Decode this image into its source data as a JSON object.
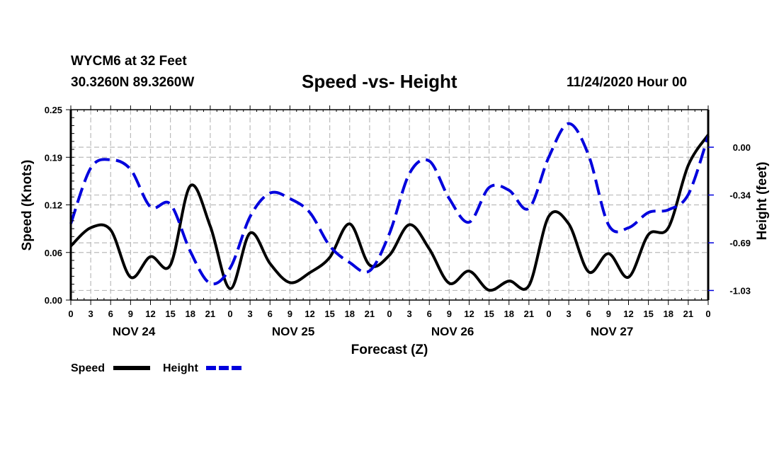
{
  "header": {
    "station": "WYCM6 at 32 Feet",
    "coords": "30.3260N 89.3260W",
    "title": "Speed -vs- Height",
    "datetime": "11/24/2020 Hour 00"
  },
  "chart_data": {
    "type": "line",
    "title": "Speed -vs- Height",
    "xlabel": "Forecast (Z)",
    "ylabel": "Speed (Knots)",
    "y2label": "Height (feet)",
    "x_hours": [
      0,
      3,
      6,
      9,
      12,
      15,
      18,
      21,
      24,
      27,
      30,
      33,
      36,
      39,
      42,
      45,
      48,
      51,
      54,
      57,
      60,
      63,
      66,
      69,
      72,
      75,
      78,
      81,
      84,
      87,
      90,
      93,
      96
    ],
    "x_tick_labels": [
      "0",
      "3",
      "6",
      "9",
      "12",
      "15",
      "18",
      "21",
      "0",
      "3",
      "6",
      "9",
      "12",
      "15",
      "18",
      "21",
      "0",
      "3",
      "6",
      "9",
      "12",
      "15",
      "18",
      "21",
      "0",
      "3",
      "6",
      "9",
      "12",
      "15",
      "18",
      "21",
      "0"
    ],
    "day_labels": [
      "NOV 24",
      "NOV 25",
      "NOV 26",
      "NOV 27"
    ],
    "xlim": [
      0,
      96
    ],
    "ylim": [
      0,
      0.25
    ],
    "y_ticks": [
      0.0,
      0.0625,
      0.125,
      0.1875,
      0.25
    ],
    "y_tick_labels": [
      "0.00",
      "0.06",
      "0.12",
      "0.19",
      "0.25"
    ],
    "y2lim": [
      -1.1,
      0.27
    ],
    "y2_ticks": [
      0.0,
      -0.344,
      -0.688,
      -1.031
    ],
    "y2_tick_labels": [
      "0.00",
      "-0.34",
      "-0.69",
      "-1.03"
    ],
    "grid": true,
    "legend_position": "bottom-left",
    "series": [
      {
        "name": "Speed",
        "axis": "left",
        "color": "#000000",
        "style": "solid",
        "values": [
          0.071,
          0.095,
          0.092,
          0.03,
          0.057,
          0.046,
          0.15,
          0.097,
          0.015,
          0.088,
          0.048,
          0.023,
          0.036,
          0.056,
          0.1,
          0.046,
          0.059,
          0.099,
          0.067,
          0.022,
          0.038,
          0.013,
          0.025,
          0.019,
          0.11,
          0.1,
          0.037,
          0.061,
          0.03,
          0.086,
          0.095,
          0.177,
          0.217
        ]
      },
      {
        "name": "Height",
        "axis": "right",
        "color": "#0000dd",
        "style": "dashed",
        "values": [
          -0.55,
          -0.15,
          -0.09,
          -0.16,
          -0.43,
          -0.41,
          -0.75,
          -0.98,
          -0.87,
          -0.5,
          -0.33,
          -0.37,
          -0.47,
          -0.71,
          -0.83,
          -0.89,
          -0.62,
          -0.19,
          -0.1,
          -0.37,
          -0.54,
          -0.29,
          -0.31,
          -0.44,
          -0.07,
          0.17,
          -0.06,
          -0.56,
          -0.58,
          -0.47,
          -0.45,
          -0.34,
          0.08
        ]
      }
    ]
  },
  "legend": {
    "speed_label": "Speed",
    "height_label": "Height"
  }
}
